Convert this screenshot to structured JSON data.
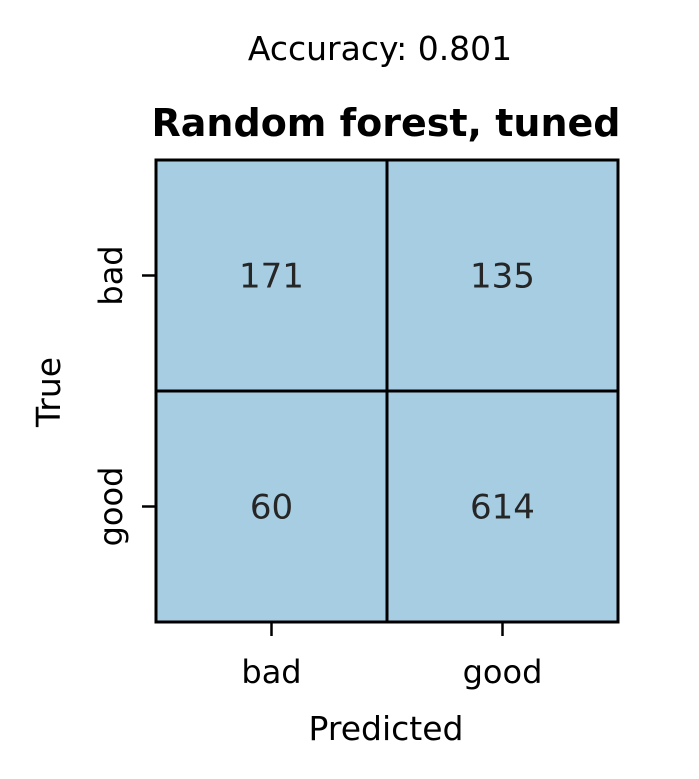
{
  "chart_data": {
    "type": "heatmap",
    "subtitle": "Accuracy: 0.801",
    "title": "Random forest, tuned",
    "xlabel": "Predicted",
    "ylabel": "True",
    "x_categories": [
      "bad",
      "good"
    ],
    "y_categories": [
      "bad",
      "good"
    ],
    "values": [
      [
        171,
        135
      ],
      [
        60,
        614
      ]
    ],
    "cell_color": "#a6cde2",
    "grid_color": "#000000",
    "colorbar": false
  }
}
